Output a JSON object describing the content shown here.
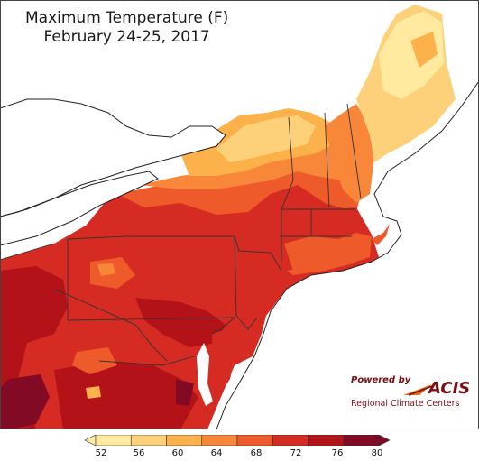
{
  "title": {
    "line1": "Maximum Temperature (F)",
    "line2": "February 24-25, 2017"
  },
  "logo": {
    "powered_by": "Powered by",
    "acis": "ACIS",
    "org": "Regional Climate Centers"
  },
  "legend": {
    "units": "F",
    "min": 52,
    "max": 80,
    "ticks": [
      "52",
      "56",
      "60",
      "64",
      "68",
      "72",
      "76",
      "80"
    ],
    "colors": [
      "#ffeaa0",
      "#fdd17a",
      "#fcb14b",
      "#f8873a",
      "#ee5a2a",
      "#d62b22",
      "#b21218",
      "#820a25"
    ]
  },
  "colors": {
    "water": "#ffffff",
    "border": "#333333",
    "hot": "#d62b22",
    "warm": "#ee5a2a",
    "mild": "#fcb14b",
    "cool": "#ffeaa0"
  }
}
